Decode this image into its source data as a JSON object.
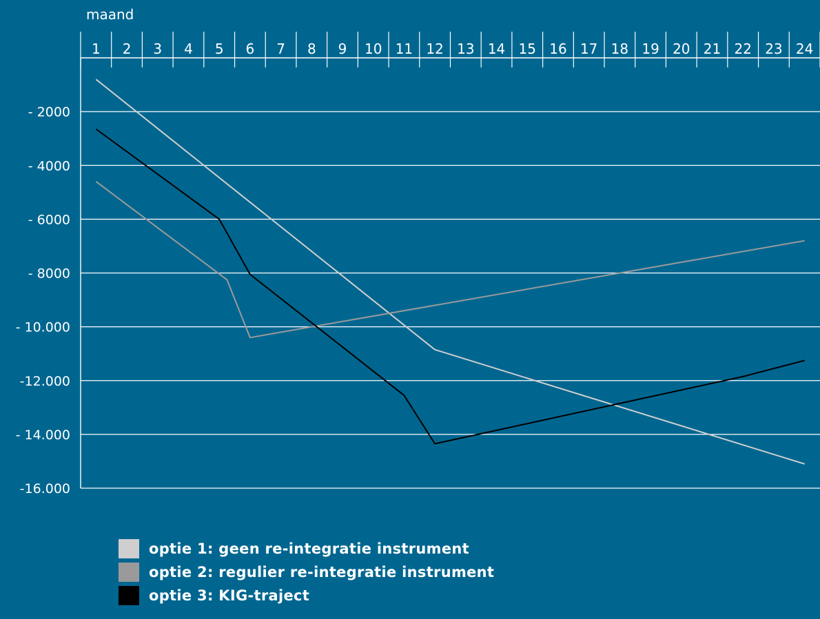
{
  "chart_data": {
    "type": "line",
    "title": "",
    "xlabel": "maand",
    "ylabel": "",
    "x": [
      1,
      2,
      3,
      4,
      5,
      6,
      7,
      8,
      9,
      10,
      11,
      12,
      13,
      14,
      15,
      16,
      17,
      18,
      19,
      20,
      21,
      22,
      23,
      24
    ],
    "ylim": [
      -16000,
      0
    ],
    "y_ticks": [
      {
        "value": -2000,
        "label": "- 2000"
      },
      {
        "value": -4000,
        "label": "- 4000"
      },
      {
        "value": -6000,
        "label": "- 6000"
      },
      {
        "value": -8000,
        "label": "- 8000"
      },
      {
        "value": -10000,
        "label": "- 10.000"
      },
      {
        "value": -12000,
        "label": "-12.000"
      },
      {
        "value": -14000,
        "label": "- 14.000"
      },
      {
        "value": -16000,
        "label": "-16.000"
      }
    ],
    "grid": true,
    "legend_position": "bottom-left",
    "series": [
      {
        "name": "optie 1: geen re-integratie instrument",
        "color": "#cfcfcf",
        "points": [
          [
            1,
            -800
          ],
          [
            12,
            -10850
          ],
          [
            24,
            -15100
          ]
        ]
      },
      {
        "name": "optie 2: regulier re-integratie instrument",
        "color": "#9a9a9a",
        "points": [
          [
            1,
            -4600
          ],
          [
            5.25,
            -8250
          ],
          [
            6,
            -10400
          ],
          [
            24,
            -6800
          ]
        ]
      },
      {
        "name": "optie 3: KIG-traject",
        "color": "#000000",
        "points": [
          [
            1,
            -2650
          ],
          [
            5,
            -6000
          ],
          [
            6,
            -8050
          ],
          [
            11,
            -12550
          ],
          [
            12,
            -14350
          ],
          [
            22,
            -11850
          ],
          [
            24,
            -11250
          ]
        ]
      }
    ]
  }
}
